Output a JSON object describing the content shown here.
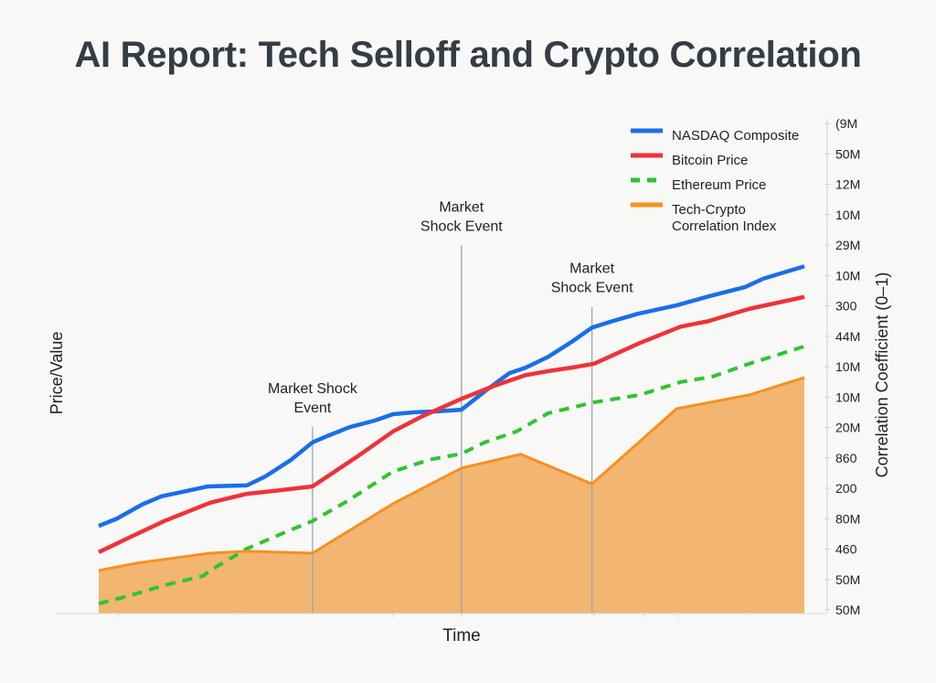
{
  "chart_data": {
    "type": "line",
    "title": "AI Report: Tech Selloff and Crypto Correlation",
    "xlabel": "Time",
    "ylabel": "Price/Value",
    "y2label": "Correlation Coefficient (0–1)",
    "y2_tick_labels": [
      "(9M",
      "50M",
      "12M",
      "10M",
      "29M",
      "10M",
      "300",
      "44M",
      "10M",
      "10M",
      "20M",
      "860",
      "200",
      "80M",
      "460",
      "50M",
      "50M"
    ],
    "xlim": [
      0,
      100
    ],
    "ylim": [
      0,
      100
    ],
    "grid": false,
    "legend_position": "top-right",
    "series": [
      {
        "name": "NASDAQ Composite",
        "color": "#1a6ee8",
        "style": "solid",
        "x": [
          0,
          2.6,
          6.1,
          8.9,
          11.9,
          15.5,
          21,
          23.6,
          27.2,
          30.3,
          32.6,
          35.6,
          39.1,
          41.7,
          44.9,
          48.2,
          51.4,
          54.7,
          58.2,
          60.5,
          63.7,
          67,
          69.9,
          72.8,
          76.4,
          81.9,
          86.4,
          91.6,
          94.2,
          100
        ],
        "y": [
          17.7,
          19.2,
          22,
          23.7,
          24.6,
          25.7,
          25.9,
          27.7,
          31,
          34.6,
          36,
          37.7,
          39,
          40.3,
          40.7,
          40.9,
          41.2,
          44.9,
          48.6,
          49.7,
          51.9,
          54.9,
          57.8,
          59.1,
          60.6,
          62.3,
          64.1,
          66,
          67.7,
          70.2
        ]
      },
      {
        "name": "Bitcoin Price",
        "color": "#ee3338",
        "style": "solid",
        "x": [
          0,
          4.1,
          9.3,
          15.8,
          21,
          24.9,
          30.3,
          36.5,
          41.7,
          45.6,
          51.4,
          56,
          60.5,
          63.7,
          67,
          70.2,
          76.7,
          82.5,
          86.4,
          92.2,
          100
        ],
        "y": [
          12.4,
          15.2,
          18.7,
          22.4,
          24.2,
          24.8,
          25.7,
          31.6,
          36.8,
          39.7,
          43.4,
          46,
          48.2,
          49,
          49.7,
          50.5,
          54.7,
          58,
          59.1,
          61.6,
          64
        ]
      },
      {
        "name": "Ethereum Price",
        "color": "#2ec52e",
        "style": "dashed",
        "x": [
          0,
          4.1,
          9.3,
          14.8,
          15.8,
          21,
          26.2,
          30.3,
          35.2,
          41.7,
          46.9,
          51.4,
          54.7,
          59.2,
          63.7,
          70.2,
          76.7,
          82.5,
          87,
          92.2,
          100
        ],
        "y": [
          2,
          3.5,
          5.7,
          7.6,
          8.7,
          13.1,
          16.3,
          18.7,
          22.7,
          28.7,
          31.1,
          32.3,
          34.6,
          36.8,
          40.5,
          42.7,
          44.2,
          46.8,
          47.9,
          50.5,
          54
        ]
      },
      {
        "name": "Tech-Crypto Correlation Index",
        "color": "#f7901e",
        "fill": "#f2b572",
        "style": "area",
        "x": [
          0,
          5.4,
          15.8,
          21,
          30.3,
          41.7,
          51.4,
          59.8,
          69.9,
          81.9,
          92.2,
          100
        ],
        "y": [
          8.7,
          10.2,
          12.2,
          12.6,
          12.2,
          22.2,
          29.4,
          32.2,
          26.2,
          41.4,
          44.2,
          47.7
        ]
      }
    ],
    "legend": [
      "NASDAQ Composite",
      "Bitcoin Price",
      "Ethereum Price",
      "Tech-Crypto",
      "Correlation Index"
    ],
    "annotations": [
      {
        "x": 30.3,
        "y_top": 37.7,
        "lines": [
          "Market Shock",
          "Event"
        ]
      },
      {
        "x": 51.4,
        "y_top": 74.4,
        "lines": [
          "Market",
          "Shock Event"
        ]
      },
      {
        "x": 69.9,
        "y_top": 62,
        "lines": [
          "Market",
          "Shock Event"
        ]
      }
    ]
  }
}
